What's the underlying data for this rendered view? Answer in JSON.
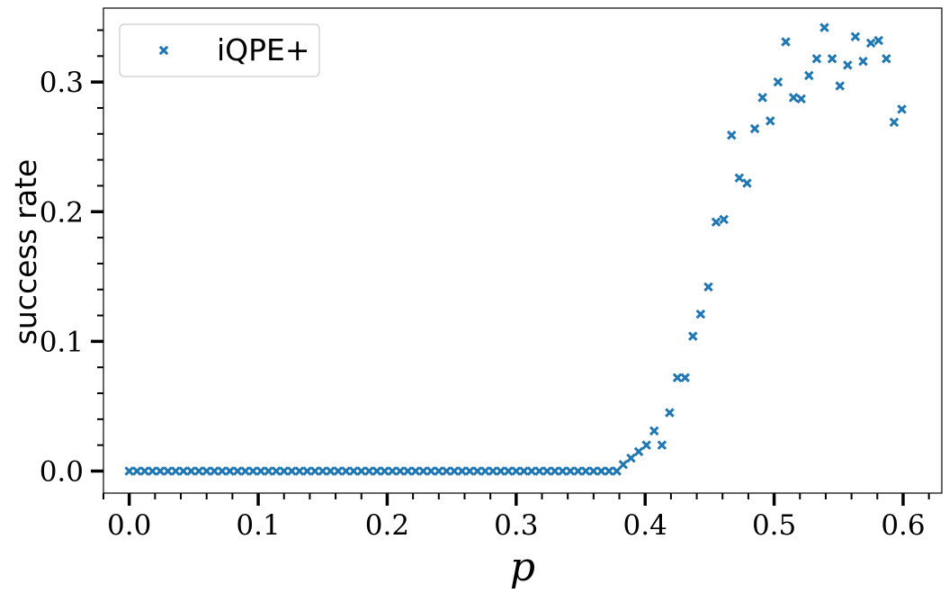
{
  "chart_data": {
    "type": "scatter",
    "title": "",
    "xlabel": "p",
    "ylabel": "success rate",
    "xlim": [
      -0.02,
      0.63
    ],
    "ylim": [
      -0.017,
      0.357
    ],
    "xticks": [
      0.0,
      0.1,
      0.2,
      0.3,
      0.4,
      0.5,
      0.6
    ],
    "xtick_labels": [
      "0.0",
      "0.1",
      "0.2",
      "0.3",
      "0.4",
      "0.5",
      "0.6"
    ],
    "yticks": [
      0.0,
      0.1,
      0.2,
      0.3
    ],
    "ytick_labels": [
      "0.0",
      "0.1",
      "0.2",
      "0.3"
    ],
    "x_minor_step": 0.02,
    "y_minor_step": 0.02,
    "grid": false,
    "legend_position": "top-left",
    "marker_color": "#1f77b4",
    "series": [
      {
        "name": "iQPE+",
        "marker": "x",
        "x": [
          0.0,
          0.006,
          0.012,
          0.018,
          0.024,
          0.03,
          0.036,
          0.042,
          0.048,
          0.054,
          0.06,
          0.066,
          0.072,
          0.078,
          0.084,
          0.09,
          0.096,
          0.102,
          0.108,
          0.114,
          0.12,
          0.126,
          0.132,
          0.138,
          0.144,
          0.15,
          0.156,
          0.162,
          0.168,
          0.174,
          0.18,
          0.186,
          0.192,
          0.198,
          0.204,
          0.21,
          0.216,
          0.222,
          0.228,
          0.234,
          0.24,
          0.246,
          0.252,
          0.258,
          0.264,
          0.27,
          0.276,
          0.282,
          0.288,
          0.294,
          0.3,
          0.306,
          0.312,
          0.318,
          0.324,
          0.33,
          0.336,
          0.342,
          0.348,
          0.354,
          0.36,
          0.366,
          0.372,
          0.378,
          0.383,
          0.389,
          0.395,
          0.401,
          0.407,
          0.413,
          0.419,
          0.425,
          0.431,
          0.437,
          0.443,
          0.449,
          0.455,
          0.461,
          0.467,
          0.473,
          0.479,
          0.485,
          0.491,
          0.497,
          0.503,
          0.509,
          0.515,
          0.521,
          0.527,
          0.533,
          0.539,
          0.545,
          0.551,
          0.557,
          0.563,
          0.569,
          0.575,
          0.581,
          0.587,
          0.593,
          0.599
        ],
        "y": [
          0.0,
          0.0,
          0.0,
          0.0,
          0.0,
          0.0,
          0.0,
          0.0,
          0.0,
          0.0,
          0.0,
          0.0,
          0.0,
          0.0,
          0.0,
          0.0,
          0.0,
          0.0,
          0.0,
          0.0,
          0.0,
          0.0,
          0.0,
          0.0,
          0.0,
          0.0,
          0.0,
          0.0,
          0.0,
          0.0,
          0.0,
          0.0,
          0.0,
          0.0,
          0.0,
          0.0,
          0.0,
          0.0,
          0.0,
          0.0,
          0.0,
          0.0,
          0.0,
          0.0,
          0.0,
          0.0,
          0.0,
          0.0,
          0.0,
          0.0,
          0.0,
          0.0,
          0.0,
          0.0,
          0.0,
          0.0,
          0.0,
          0.0,
          0.0,
          0.0,
          0.0,
          0.0,
          0.0,
          0.0,
          0.005,
          0.01,
          0.015,
          0.02,
          0.031,
          0.02,
          0.045,
          0.072,
          0.072,
          0.104,
          0.121,
          0.142,
          0.192,
          0.194,
          0.259,
          0.226,
          0.222,
          0.264,
          0.288,
          0.27,
          0.3,
          0.331,
          0.288,
          0.287,
          0.305,
          0.318,
          0.342,
          0.318,
          0.297,
          0.313,
          0.335,
          0.316,
          0.33,
          0.332,
          0.318,
          0.269,
          0.279
        ]
      }
    ]
  }
}
